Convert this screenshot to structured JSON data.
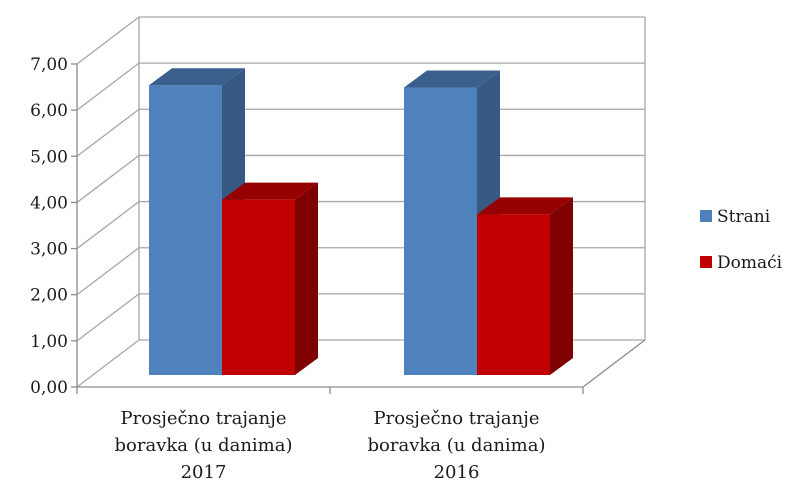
{
  "chart_data": {
    "type": "bar",
    "title": "",
    "xlabel": "",
    "ylabel": "",
    "categories": [
      [
        "Prosječno trajanje",
        "boravka (u danima)",
        "2017"
      ],
      [
        "Prosječno trajanje",
        "boravka (u danima)",
        "2016"
      ]
    ],
    "series": [
      {
        "name": "Strani",
        "values": [
          6.28,
          6.23
        ],
        "color": "#4f81bd",
        "side_color": "#375a83",
        "top_color": "#3a5f8c"
      },
      {
        "name": "Domaći",
        "values": [
          3.8,
          3.48
        ],
        "color": "#c00000",
        "side_color": "#7f0000",
        "top_color": "#960000"
      }
    ],
    "ylim": [
      0,
      7
    ],
    "yticks": [
      "0,00",
      "1,00",
      "2,00",
      "3,00",
      "4,00",
      "5,00",
      "6,00",
      "7,00"
    ],
    "grid": true,
    "legend_position": "right"
  }
}
